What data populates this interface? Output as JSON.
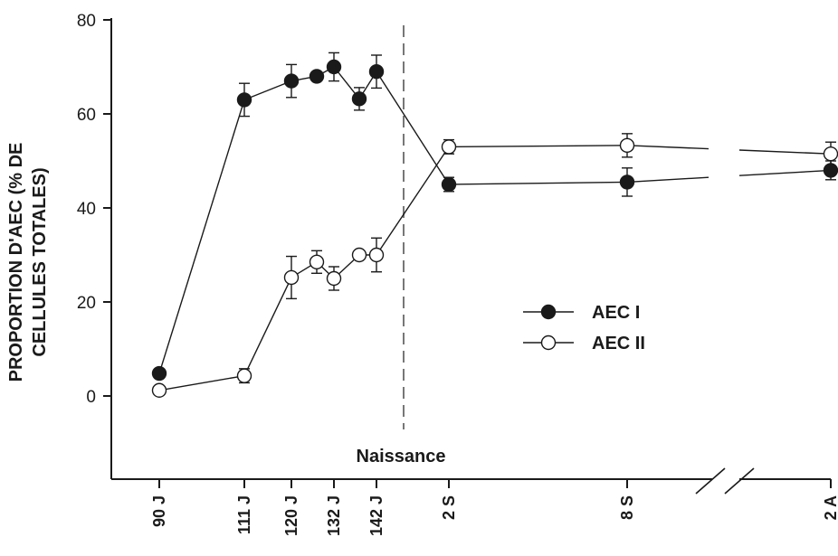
{
  "chart_data": {
    "type": "line",
    "ylabel_lines": [
      "PROPORTION D'AEC (% DE",
      "CELLULES TOTALES)"
    ],
    "ylim": [
      -17,
      80
    ],
    "yticks": [
      0,
      20,
      40,
      60,
      80
    ],
    "ytick_labels": [
      "0",
      "20",
      "40",
      "60",
      "80"
    ],
    "grid": false,
    "axis_break": "between 8 S and 2 A",
    "categories": [
      "90 J",
      "111 J",
      "120 J",
      "",
      "132 J",
      "",
      "142 J",
      "2 S",
      "8 S",
      "2 A"
    ],
    "x_tick_labels": [
      "90 J",
      "111 J",
      "120 J",
      "132 J",
      "142 J",
      "2 S",
      "8 S",
      "2 A"
    ],
    "annotations": [
      {
        "text": "Naissance",
        "style": "dashed vertical line"
      }
    ],
    "legend": {
      "position": "center-right"
    },
    "series": [
      {
        "name": "AEC I",
        "marker": "filled-circle",
        "color": "#1a1a1a",
        "values": [
          4.8,
          63,
          67,
          68,
          70,
          63.2,
          69,
          45,
          45.5,
          48
        ],
        "errors": [
          0,
          3.5,
          3.5,
          0,
          3,
          2.4,
          3.5,
          1.5,
          3,
          2
        ]
      },
      {
        "name": "AEC II",
        "marker": "open-circle",
        "color": "#1a1a1a",
        "values": [
          1.2,
          4.3,
          25.2,
          28.5,
          25,
          30,
          30,
          53,
          53.3,
          51.5
        ],
        "errors": [
          0,
          1.5,
          4.5,
          2.4,
          2.5,
          0,
          3.6,
          1.5,
          2.5,
          2.5
        ]
      }
    ]
  }
}
